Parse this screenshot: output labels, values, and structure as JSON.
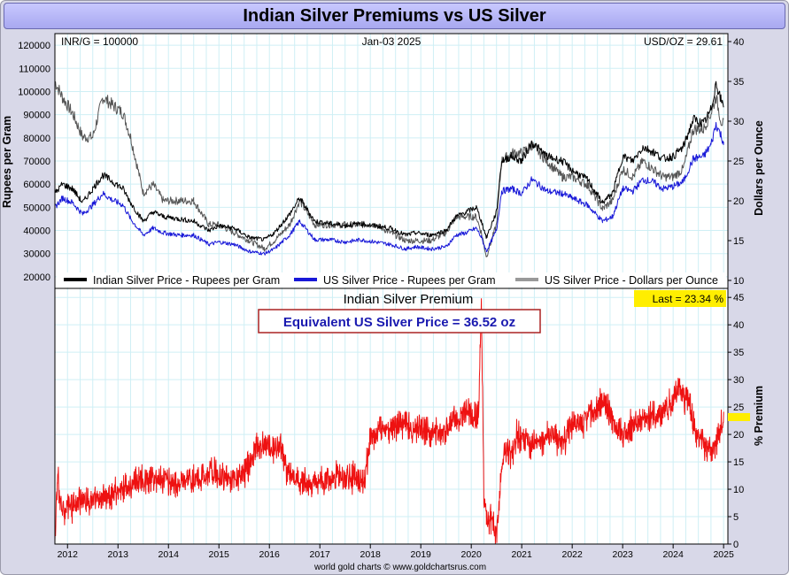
{
  "title": "Indian Silver Premiums vs US Silver",
  "footer": "world gold charts © www.goldchartsrus.com",
  "upper_labels": {
    "left": "INR/G = 100000",
    "center": "Jan-03  2025",
    "right": "USD/OZ = 29.61"
  },
  "lower_labels": {
    "panel_title": "Indian Silver Premium",
    "callout": "Equivalent US Silver Price = 36.52 oz",
    "last": "Last = 23.34 %"
  },
  "colors": {
    "indian": "#000000",
    "us": "#1818d8",
    "usd": "#555555",
    "premium": "#ee1111",
    "callout_text": "#1a1ab0",
    "callout_border": "#aa2222",
    "highlight": "#ffee00",
    "grid": "#cfeff5"
  },
  "chart_data": [
    {
      "type": "line",
      "ylabel": "Rupees per Gram",
      "y2label": "Dollars per Ounce",
      "ylim": [
        15000,
        125000
      ],
      "y2lim": [
        9,
        41
      ],
      "yticks": [
        20000,
        30000,
        40000,
        50000,
        60000,
        70000,
        80000,
        90000,
        100000,
        110000,
        120000
      ],
      "y2ticks": [
        10,
        15,
        20,
        25,
        30,
        35,
        40
      ],
      "xlim": [
        2011.75,
        2025.05
      ],
      "xticks": [
        "2012",
        "2013",
        "2014",
        "2015",
        "2016",
        "2017",
        "2018",
        "2019",
        "2020",
        "2021",
        "2022",
        "2023",
        "2024",
        "2025"
      ],
      "grid": true,
      "legend": "bottom",
      "series": [
        {
          "name": "Indian Silver Price - Rupees per Gram",
          "axis": "left",
          "x": [
            2011.75,
            2011.9,
            2012.1,
            2012.3,
            2012.5,
            2012.7,
            2012.9,
            2013.1,
            2013.25,
            2013.5,
            2013.7,
            2013.9,
            2014.2,
            2014.5,
            2014.8,
            2015.0,
            2015.3,
            2015.6,
            2015.9,
            2016.1,
            2016.4,
            2016.6,
            2016.9,
            2017.2,
            2017.5,
            2017.8,
            2018.1,
            2018.4,
            2018.7,
            2018.9,
            2019.2,
            2019.5,
            2019.7,
            2019.9,
            2020.1,
            2020.2,
            2020.3,
            2020.5,
            2020.6,
            2020.8,
            2021.0,
            2021.2,
            2021.5,
            2021.8,
            2022.0,
            2022.3,
            2022.6,
            2022.8,
            2023.0,
            2023.2,
            2023.4,
            2023.6,
            2023.8,
            2024.0,
            2024.2,
            2024.4,
            2024.6,
            2024.75,
            2024.85,
            2024.95,
            2025.0
          ],
          "values": [
            56000,
            60000,
            58000,
            52000,
            58000,
            64000,
            61000,
            58000,
            52000,
            44000,
            48000,
            46000,
            45000,
            44000,
            40000,
            42000,
            41000,
            37000,
            36000,
            39000,
            47000,
            54000,
            44000,
            43000,
            42000,
            43000,
            42000,
            41000,
            38000,
            39000,
            38000,
            40000,
            46000,
            48000,
            50000,
            44000,
            37000,
            48000,
            70000,
            72000,
            70000,
            78000,
            72000,
            70000,
            66000,
            62000,
            52000,
            56000,
            72000,
            70000,
            76000,
            74000,
            71000,
            72000,
            76000,
            88000,
            86000,
            92000,
            104000,
            96000,
            94000
          ]
        },
        {
          "name": "US Silver Price - Rupees per Gram",
          "axis": "left",
          "x": [
            2011.75,
            2011.9,
            2012.1,
            2012.3,
            2012.5,
            2012.7,
            2012.9,
            2013.1,
            2013.25,
            2013.5,
            2013.7,
            2013.9,
            2014.2,
            2014.5,
            2014.8,
            2015.0,
            2015.3,
            2015.6,
            2015.9,
            2016.1,
            2016.4,
            2016.6,
            2016.9,
            2017.2,
            2017.5,
            2017.8,
            2018.1,
            2018.4,
            2018.7,
            2018.9,
            2019.2,
            2019.5,
            2019.7,
            2019.9,
            2020.1,
            2020.2,
            2020.3,
            2020.5,
            2020.6,
            2020.8,
            2021.0,
            2021.2,
            2021.5,
            2021.8,
            2022.0,
            2022.3,
            2022.6,
            2022.8,
            2023.0,
            2023.2,
            2023.4,
            2023.6,
            2023.8,
            2024.0,
            2024.2,
            2024.4,
            2024.6,
            2024.75,
            2024.85,
            2024.95,
            2025.0
          ],
          "values": [
            50000,
            54000,
            52000,
            47000,
            51000,
            56000,
            53000,
            51000,
            45000,
            38000,
            41000,
            39000,
            38000,
            38000,
            34000,
            35000,
            34000,
            31000,
            30000,
            32000,
            38000,
            44000,
            36000,
            36000,
            35000,
            36000,
            35000,
            34000,
            32000,
            33000,
            32000,
            33000,
            38000,
            39000,
            41000,
            37000,
            31000,
            40000,
            57000,
            58000,
            56000,
            62000,
            57000,
            56000,
            54000,
            51000,
            44000,
            46000,
            58000,
            57000,
            62000,
            61000,
            58000,
            59000,
            61000,
            71000,
            72000,
            77000,
            86000,
            81000,
            78000
          ]
        },
        {
          "name": "US Silver Price - Dollars per Ounce",
          "axis": "right",
          "x": [
            2011.75,
            2011.9,
            2012.1,
            2012.3,
            2012.5,
            2012.7,
            2012.9,
            2013.1,
            2013.25,
            2013.5,
            2013.7,
            2013.9,
            2014.2,
            2014.5,
            2014.8,
            2015.0,
            2015.3,
            2015.6,
            2015.9,
            2016.1,
            2016.4,
            2016.6,
            2016.9,
            2017.2,
            2017.5,
            2017.8,
            2018.1,
            2018.4,
            2018.7,
            2018.9,
            2019.2,
            2019.5,
            2019.7,
            2019.9,
            2020.1,
            2020.2,
            2020.3,
            2020.5,
            2020.6,
            2020.8,
            2021.0,
            2021.2,
            2021.5,
            2021.8,
            2022.0,
            2022.3,
            2022.6,
            2022.8,
            2023.0,
            2023.2,
            2023.4,
            2023.6,
            2023.8,
            2024.0,
            2024.2,
            2024.4,
            2024.6,
            2024.75,
            2024.85,
            2024.95,
            2025.0
          ],
          "values": [
            35,
            33,
            31,
            28,
            28,
            33,
            32,
            31,
            28,
            21,
            22,
            20,
            20,
            20,
            17,
            17,
            16,
            15,
            14,
            15,
            17,
            20,
            17,
            17,
            17,
            17,
            17,
            16,
            15,
            15,
            15,
            16,
            18,
            18,
            18,
            16,
            13,
            17,
            25,
            26,
            26,
            27,
            25,
            23,
            23,
            22,
            19,
            20,
            24,
            23,
            25,
            24,
            23,
            23,
            24,
            29,
            29,
            31,
            33,
            30,
            29.6
          ]
        }
      ]
    },
    {
      "type": "line",
      "title": "Indian Silver Premium",
      "ylabel": "% Premium",
      "ylim": [
        0,
        46
      ],
      "yticks": [
        0,
        5,
        10,
        15,
        20,
        25,
        30,
        35,
        40,
        45
      ],
      "xlim": [
        2011.75,
        2025.05
      ],
      "grid": true,
      "series": [
        {
          "x": [
            2011.75,
            2011.8,
            2011.9,
            2012.1,
            2012.3,
            2012.6,
            2012.9,
            2013.1,
            2013.3,
            2013.6,
            2013.9,
            2014.2,
            2014.6,
            2014.9,
            2015.2,
            2015.5,
            2015.7,
            2015.9,
            2016.1,
            2016.2,
            2016.35,
            2016.5,
            2016.8,
            2017.2,
            2017.6,
            2017.9,
            2018.0,
            2018.1,
            2018.3,
            2018.7,
            2019.0,
            2019.3,
            2019.5,
            2019.7,
            2019.9,
            2020.1,
            2020.15,
            2020.2,
            2020.25,
            2020.3,
            2020.4,
            2020.5,
            2020.6,
            2020.7,
            2020.8,
            2020.9,
            2021.0,
            2021.2,
            2021.4,
            2021.6,
            2021.8,
            2022.0,
            2022.2,
            2022.4,
            2022.5,
            2022.6,
            2022.7,
            2022.8,
            2023.0,
            2023.2,
            2023.4,
            2023.6,
            2023.8,
            2024.0,
            2024.1,
            2024.2,
            2024.3,
            2024.5,
            2024.7,
            2024.8,
            2024.9,
            2025.0
          ],
          "values": [
            2,
            12,
            6,
            7,
            8,
            8,
            9,
            10,
            11,
            12,
            12,
            11,
            12,
            13,
            12,
            13,
            17,
            18,
            17,
            19,
            13,
            12,
            11,
            12,
            12,
            12,
            20,
            20,
            21,
            22,
            21,
            20,
            21,
            23,
            24,
            23,
            25,
            45,
            8,
            5,
            4,
            1,
            14,
            17,
            16,
            20,
            19,
            18,
            19,
            20,
            18,
            22,
            22,
            24,
            24,
            27,
            25,
            22,
            20,
            22,
            23,
            23,
            24,
            26,
            29,
            27,
            26,
            19,
            18,
            17,
            20,
            23.3
          ]
        }
      ]
    }
  ]
}
